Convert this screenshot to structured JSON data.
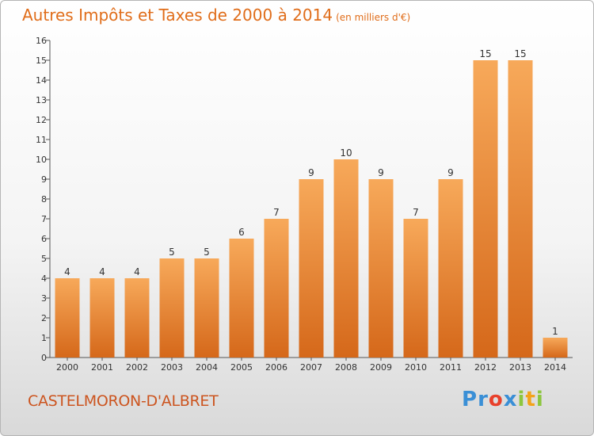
{
  "title": "Autres Impôts et Taxes de 2000 à 2014",
  "unit_label": "(en milliers d'€)",
  "location": "CASTELMORON-D'ALBRET",
  "logo": {
    "text": "Proxiti",
    "letters": [
      "P",
      "r",
      "o",
      "x",
      "i",
      "t",
      "i"
    ],
    "colors": [
      "#3a8fd6",
      "#3a8fd6",
      "#e8412c",
      "#3a8fd6",
      "#8cc63e",
      "#f2a31b",
      "#8cc63e"
    ]
  },
  "colors": {
    "bar_top": "#f7a95a",
    "bar_bottom": "#d5681a",
    "title": "#e06d1a",
    "axis": "#555555"
  },
  "chart_data": {
    "type": "bar",
    "title": "Autres Impôts et Taxes de 2000 à 2014",
    "xlabel": "",
    "ylabel": "(en milliers d'€)",
    "categories": [
      "2000",
      "2001",
      "2002",
      "2003",
      "2004",
      "2005",
      "2006",
      "2007",
      "2008",
      "2009",
      "2010",
      "2011",
      "2012",
      "2013",
      "2014"
    ],
    "values": [
      4,
      4,
      4,
      5,
      5,
      6,
      7,
      9,
      10,
      9,
      7,
      9,
      15,
      15,
      1
    ],
    "ylim": [
      0,
      16
    ],
    "yticks": [
      0,
      1,
      2,
      3,
      4,
      5,
      6,
      7,
      8,
      9,
      10,
      11,
      12,
      13,
      14,
      15,
      16
    ],
    "grid": false
  }
}
